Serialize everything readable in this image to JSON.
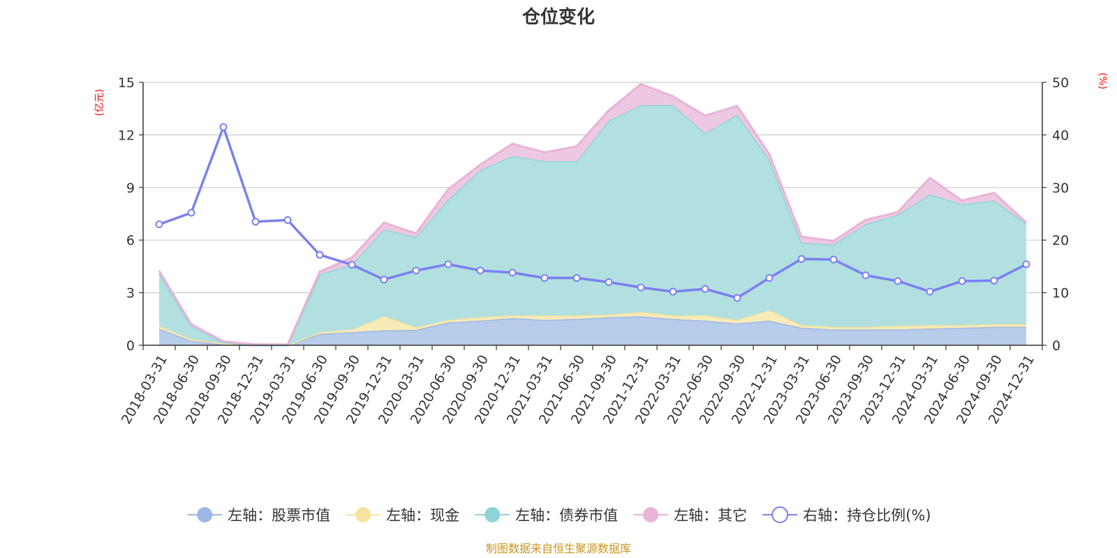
{
  "chart_data": {
    "type": "area",
    "title": "仓位变化",
    "left_unit": "(亿元)",
    "right_unit": "(%)",
    "left_ticks": [
      "0",
      "3",
      "6",
      "9",
      "12",
      "15"
    ],
    "right_ticks": [
      "0",
      "10",
      "20",
      "30",
      "40",
      "50"
    ],
    "left_ylim": [
      0,
      15
    ],
    "right_ylim": [
      0,
      50
    ],
    "grid": true,
    "legend_position": "bottom",
    "source": "制图数据来自恒生聚源数据库",
    "categories": [
      "2018-03-31",
      "2018-06-30",
      "2018-09-30",
      "2018-12-31",
      "2019-03-31",
      "2019-06-30",
      "2019-09-30",
      "2019-12-31",
      "2020-03-31",
      "2020-06-30",
      "2020-09-30",
      "2020-12-31",
      "2021-03-31",
      "2021-06-30",
      "2021-09-30",
      "2021-12-31",
      "2022-03-31",
      "2022-06-30",
      "2022-09-30",
      "2022-12-31",
      "2023-03-31",
      "2023-06-30",
      "2023-09-30",
      "2023-12-31",
      "2024-03-31",
      "2024-06-30",
      "2024-09-30",
      "2024-12-31"
    ],
    "series": [
      {
        "name": "左轴：股票市值",
        "axis": "left",
        "stack": true,
        "color": "#9db8e3",
        "fill": "#b8cceb",
        "values": [
          0.95,
          0.25,
          0.05,
          0.0,
          0.0,
          0.65,
          0.75,
          0.85,
          0.88,
          1.3,
          1.4,
          1.55,
          1.45,
          1.5,
          1.6,
          1.65,
          1.5,
          1.4,
          1.25,
          1.4,
          1.0,
          0.9,
          0.9,
          0.9,
          0.95,
          1.0,
          1.05,
          1.05
        ]
      },
      {
        "name": "左轴：现金",
        "axis": "left",
        "stack": true,
        "color": "#f5e3a0",
        "fill": "#f8ebb8",
        "values": [
          0.15,
          0.1,
          0.05,
          0.0,
          0.0,
          0.1,
          0.15,
          0.8,
          0.15,
          0.15,
          0.2,
          0.15,
          0.25,
          0.2,
          0.15,
          0.25,
          0.2,
          0.3,
          0.2,
          0.6,
          0.15,
          0.15,
          0.15,
          0.2,
          0.2,
          0.15,
          0.15,
          0.15
        ]
      },
      {
        "name": "左轴：债券市值",
        "axis": "left",
        "stack": true,
        "color": "#8fd3d6",
        "fill": "#b2e0e0",
        "values": [
          3.0,
          0.75,
          0.07,
          0.0,
          0.0,
          3.3,
          3.7,
          4.95,
          5.15,
          6.85,
          8.4,
          9.1,
          8.8,
          8.8,
          11.05,
          11.8,
          12.0,
          10.4,
          11.7,
          8.6,
          4.7,
          4.7,
          5.85,
          6.35,
          7.45,
          6.9,
          7.05,
          5.75
        ]
      },
      {
        "name": "左轴：其它",
        "axis": "left",
        "stack": true,
        "color": "#e8b4d8",
        "fill": "#edc8e1",
        "values": [
          0.15,
          0.1,
          0.05,
          0.05,
          0.05,
          0.15,
          0.4,
          0.4,
          0.2,
          0.6,
          0.3,
          0.7,
          0.5,
          0.85,
          0.6,
          1.2,
          0.5,
          1.0,
          0.5,
          0.3,
          0.35,
          0.2,
          0.25,
          0.15,
          0.95,
          0.2,
          0.45,
          0.05
        ]
      },
      {
        "name": "右轴：持仓比例(%)",
        "axis": "right",
        "stack": false,
        "color": "#7b7ff2",
        "values": [
          23.0,
          25.2,
          41.5,
          23.5,
          23.8,
          17.2,
          15.3,
          12.5,
          14.2,
          15.4,
          14.2,
          13.8,
          12.8,
          12.8,
          12.0,
          11.0,
          10.2,
          10.7,
          9.0,
          12.8,
          16.4,
          16.3,
          13.3,
          12.2,
          10.2,
          12.2,
          12.3,
          15.4
        ]
      }
    ]
  }
}
